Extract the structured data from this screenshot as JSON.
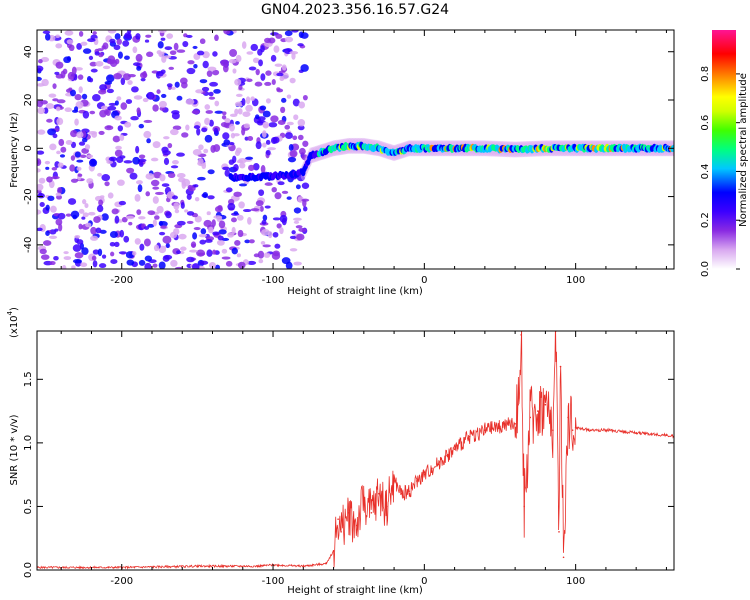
{
  "title": "GN04.2023.356.16.57.G24",
  "chart_data": [
    {
      "type": "heatmap",
      "xlabel": "Height of straight line (km)",
      "ylabel": "Frequency (Hz)",
      "xlim": [
        -256,
        165
      ],
      "ylim": [
        -50,
        49
      ],
      "xticks": [
        -200,
        -100,
        0,
        100
      ],
      "xticklabels": [
        "-200",
        "-100",
        "0",
        "100"
      ],
      "yticks": [
        -40,
        -20,
        0,
        20,
        40
      ],
      "yticklabels": [
        "-40",
        "-20",
        "0",
        "20",
        "40"
      ],
      "ridge": {
        "x": [
          -125,
          -110,
          -90,
          -80,
          -75,
          -60,
          -50,
          -40,
          -30,
          -20,
          -10,
          0,
          20,
          40,
          60,
          80,
          100,
          120,
          140,
          165
        ],
        "y": [
          -12,
          -12,
          -11,
          -10,
          -3,
          0,
          1,
          1,
          0,
          -2,
          0,
          0,
          0,
          0,
          -0.5,
          0,
          0,
          0,
          0,
          0
        ]
      },
      "colorbar": {
        "label": "Normalized spectral amplitude",
        "ticks": [
          0.0,
          0.2,
          0.4,
          0.6,
          0.8
        ],
        "ticklabels": [
          "0.0",
          "0.2",
          "0.4",
          "0.6",
          "0.8"
        ],
        "range": [
          0,
          0.98
        ],
        "colors": [
          "#ffffff",
          "#d9a8f0",
          "#8a2be2",
          "#3c00ff",
          "#0000ff",
          "#00c8ff",
          "#00ff80",
          "#40ff00",
          "#d0ff00",
          "#ffff00",
          "#ff9000",
          "#ff0000",
          "#ff1493"
        ]
      },
      "grid": false
    },
    {
      "type": "line",
      "xlabel": "Height of straight line (km)",
      "ylabel": "SNR (10 * v/v)",
      "multiplier": "(x10",
      "multiplier_exp": "4",
      "multiplier_close": ")",
      "xlim": [
        -256,
        165
      ],
      "ylim": [
        0,
        1.88
      ],
      "xticks": [
        -200,
        -100,
        0,
        100
      ],
      "xticklabels": [
        "-200",
        "-100",
        "0",
        "100"
      ],
      "yticks": [
        0.0,
        0.5,
        1.0,
        1.5
      ],
      "yticklabels": [
        "0.0",
        "0.5",
        "1.0",
        "1.5"
      ],
      "series": [
        {
          "color": "#e8302a",
          "x": [
            -256,
            -200,
            -150,
            -110,
            -100,
            -80,
            -65,
            -60,
            -57,
            -55,
            -50,
            -45,
            -40,
            -35,
            -30,
            -25,
            -20,
            -15,
            -10,
            -5,
            0,
            5,
            10,
            15,
            20,
            30,
            40,
            50,
            60,
            62,
            64,
            66,
            70,
            75,
            80,
            85,
            87,
            89,
            90,
            92,
            95,
            98,
            100,
            110,
            120,
            130,
            140,
            150,
            160,
            165
          ],
          "y": [
            0.02,
            0.02,
            0.03,
            0.03,
            0.04,
            0.03,
            0.05,
            0.15,
            0.4,
            0.3,
            0.45,
            0.35,
            0.55,
            0.45,
            0.6,
            0.5,
            0.7,
            0.6,
            0.62,
            0.7,
            0.75,
            0.8,
            0.85,
            0.9,
            0.95,
            1.05,
            1.1,
            1.13,
            1.15,
            1.3,
            1.85,
            0.5,
            1.2,
            1.25,
            1.3,
            1.1,
            1.88,
            0.3,
            1.6,
            0.1,
            1.2,
            1.1,
            1.12,
            1.1,
            1.1,
            1.09,
            1.08,
            1.07,
            1.06,
            1.05
          ]
        }
      ],
      "grid": false
    }
  ]
}
